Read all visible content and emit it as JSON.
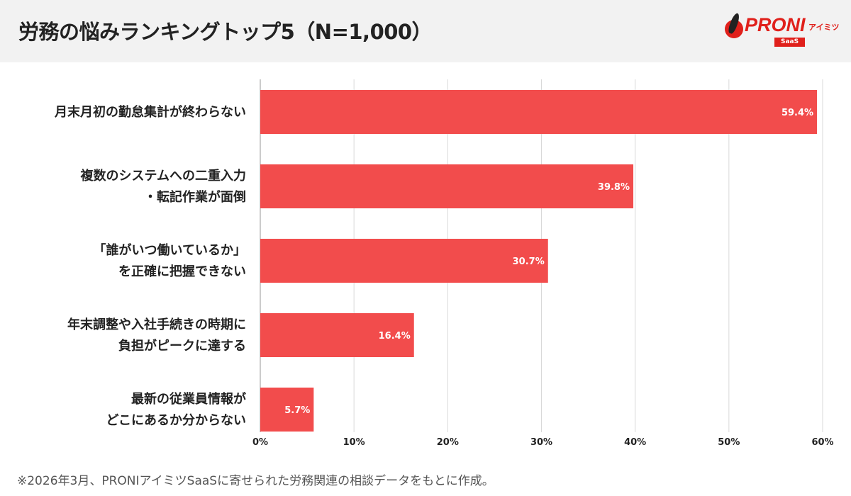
{
  "title": "労務の悩みランキングトップ5（N=1,000）",
  "logo": {
    "word": "PRONI",
    "kana": "アイミツ",
    "badge": "SaaS"
  },
  "footnote": "※2026年3月、PRONIアイミツSaaSに寄せられた労務関連の相談データをもとに作成。",
  "colors": {
    "bar": "#f24c4c",
    "header_bg": "#f2f2f2",
    "brand": "#e0201b"
  },
  "chart_data": {
    "type": "bar",
    "orientation": "horizontal",
    "categories": [
      [
        "月末月初の勤怠集計が終わらない"
      ],
      [
        "複数のシステムへの二重入力",
        "・転記作業が面倒"
      ],
      [
        "「誰がいつ働いているか」",
        "を正確に把握できない"
      ],
      [
        "年末調整や入社手続きの時期に",
        "負担がピークに達する"
      ],
      [
        "最新の従業員情報が",
        "どこにあるか分からない"
      ]
    ],
    "values": [
      59.4,
      39.8,
      30.7,
      16.4,
      5.7
    ],
    "data_labels": [
      "59.4%",
      "39.8%",
      "30.7%",
      "16.4%",
      "5.7%"
    ],
    "xlim": [
      0,
      60
    ],
    "xticks": [
      0,
      10,
      20,
      30,
      40,
      50,
      60
    ],
    "xtick_labels": [
      "0%",
      "10%",
      "20%",
      "30%",
      "40%",
      "50%",
      "60%"
    ],
    "grid": true
  }
}
